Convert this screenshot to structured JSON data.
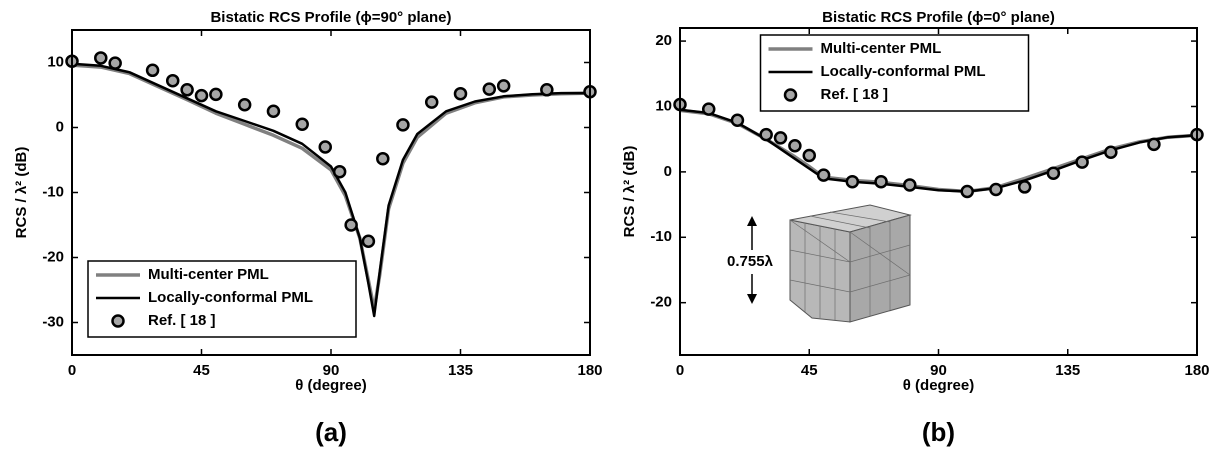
{
  "chart_data": [
    {
      "type": "line",
      "title": "Bistatic RCS Profile (ϕ=90° plane)",
      "x_label": "θ (degree)",
      "y_label": "RCS / λ² (dB)",
      "panel_label": "(a)",
      "xlim": [
        0,
        180
      ],
      "xticks": [
        0,
        45,
        90,
        135,
        180
      ],
      "ylim": [
        -35,
        15
      ],
      "yticks": [
        -30,
        -20,
        -10,
        0,
        10
      ],
      "legend": "lower left",
      "series": [
        {
          "name": "Multi-center PML",
          "color": "#808080",
          "style": "line",
          "x": [
            0,
            10,
            20,
            30,
            40,
            50,
            60,
            70,
            80,
            90,
            95,
            100,
            103,
            105,
            107,
            110,
            115,
            120,
            130,
            140,
            150,
            160,
            170,
            180
          ],
          "values": [
            9.6,
            9.3,
            8.3,
            6.3,
            4.3,
            2.2,
            0.5,
            -1.2,
            -3.2,
            -6.5,
            -10.5,
            -17,
            -23.5,
            -28,
            -22.5,
            -12.5,
            -5.5,
            -1.5,
            2.2,
            3.8,
            4.7,
            5.0,
            5.2,
            5.3
          ]
        },
        {
          "name": "Locally-conformal PML",
          "color": "#000000",
          "style": "line",
          "x": [
            0,
            10,
            20,
            30,
            40,
            50,
            60,
            70,
            80,
            90,
            95,
            100,
            103,
            105,
            107,
            110,
            115,
            120,
            130,
            140,
            150,
            160,
            170,
            180
          ],
          "values": [
            9.8,
            9.5,
            8.5,
            6.5,
            4.5,
            2.5,
            1.0,
            -0.5,
            -2.5,
            -6.0,
            -10,
            -17,
            -24,
            -29,
            -22,
            -12,
            -5,
            -1,
            2.5,
            4.0,
            4.8,
            5.1,
            5.3,
            5.3
          ]
        },
        {
          "name": "Ref. [ 18 ]",
          "color": "#a6a6a6",
          "style": "marker",
          "x": [
            0,
            10,
            15,
            28,
            35,
            40,
            45,
            50,
            60,
            70,
            80,
            88,
            93,
            97,
            103,
            108,
            115,
            125,
            135,
            145,
            150,
            165,
            180
          ],
          "values": [
            10.2,
            10.7,
            9.9,
            8.8,
            7.2,
            5.8,
            4.9,
            5.1,
            3.5,
            2.5,
            0.5,
            -3,
            -6.8,
            -15,
            -17.5,
            -4.8,
            0.4,
            3.9,
            5.2,
            5.9,
            6.4,
            5.8,
            5.5
          ]
        }
      ]
    },
    {
      "type": "line",
      "title": "Bistatic RCS Profile (ϕ=0° plane)",
      "x_label": "θ (degree)",
      "y_label": "RCS / λ² (dB)",
      "panel_label": "(b)",
      "xlim": [
        0,
        180
      ],
      "xticks": [
        0,
        45,
        90,
        135,
        180
      ],
      "ylim": [
        -28,
        22
      ],
      "yticks": [
        -20,
        -10,
        0,
        10,
        20
      ],
      "legend": "upper center",
      "annotation": "0.755λ",
      "series": [
        {
          "name": "Multi-center PML",
          "color": "#808080",
          "style": "line",
          "x": [
            0,
            10,
            20,
            30,
            40,
            45,
            50,
            60,
            70,
            80,
            90,
            100,
            110,
            120,
            130,
            140,
            150,
            160,
            170,
            180
          ],
          "values": [
            9.4,
            8.9,
            7.4,
            5.0,
            2.3,
            0.8,
            -0.8,
            -1.3,
            -1.6,
            -2.1,
            -2.7,
            -3.0,
            -2.4,
            -1.0,
            0.5,
            2.0,
            3.5,
            4.6,
            5.3,
            5.6
          ]
        },
        {
          "name": "Locally-conformal PML",
          "color": "#000000",
          "style": "line",
          "x": [
            0,
            10,
            20,
            30,
            40,
            45,
            50,
            60,
            70,
            80,
            90,
            100,
            110,
            120,
            130,
            140,
            150,
            160,
            170,
            180
          ],
          "values": [
            9.5,
            9.0,
            7.5,
            5.0,
            2.0,
            0.5,
            -1.0,
            -1.5,
            -1.8,
            -2.3,
            -2.8,
            -3.0,
            -2.5,
            -1.3,
            0.2,
            1.8,
            3.3,
            4.5,
            5.3,
            5.6
          ]
        },
        {
          "name": "Ref. [ 18 ]",
          "color": "#a6a6a6",
          "style": "marker",
          "x": [
            0,
            10,
            20,
            30,
            35,
            40,
            45,
            50,
            60,
            70,
            80,
            100,
            110,
            120,
            130,
            140,
            150,
            165,
            180
          ],
          "values": [
            10.3,
            9.6,
            7.9,
            5.7,
            5.2,
            4.0,
            2.5,
            -0.5,
            -1.5,
            -1.5,
            -2.0,
            -3.0,
            -2.7,
            -2.3,
            -0.2,
            1.5,
            3.0,
            4.2,
            5.7
          ]
        }
      ]
    }
  ]
}
